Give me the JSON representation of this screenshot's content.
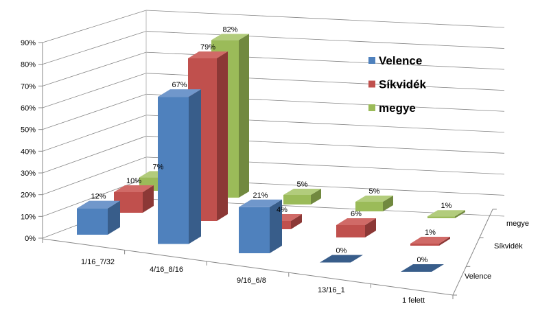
{
  "chart_data": {
    "type": "bar",
    "subtype": "3d-column",
    "title": "",
    "categories": [
      "1/16_7/32",
      "4/16_8/16",
      "9/16_6/8",
      "13/16_1",
      "1 felett"
    ],
    "series": [
      {
        "name": "Velence",
        "values": [
          12,
          67,
          21,
          0,
          0
        ],
        "labels": [
          "12%",
          "67%",
          "21%",
          "0%",
          "0%"
        ],
        "color": "#4F81BD"
      },
      {
        "name": "Síkvidék",
        "values": [
          10,
          79,
          4,
          6,
          1
        ],
        "labels": [
          "10%",
          "79%",
          "4%",
          "6%",
          "1%"
        ],
        "color": "#C0504D"
      },
      {
        "name": "megye",
        "values": [
          7,
          82,
          5,
          5,
          1
        ],
        "labels": [
          "7%",
          "82%",
          "5%",
          "5%",
          "1%"
        ],
        "color": "#9BBB59"
      }
    ],
    "ylim": [
      0,
      90
    ],
    "yticks": [
      "0%",
      "10%",
      "20%",
      "30%",
      "40%",
      "50%",
      "60%",
      "70%",
      "80%",
      "90%"
    ],
    "grid": true,
    "legend": {
      "position": "right",
      "entries": [
        "Velence",
        "Síkvidék",
        "megye"
      ]
    },
    "depth_axis_labels": [
      "Velence",
      "Síkvidék",
      "megye"
    ]
  }
}
